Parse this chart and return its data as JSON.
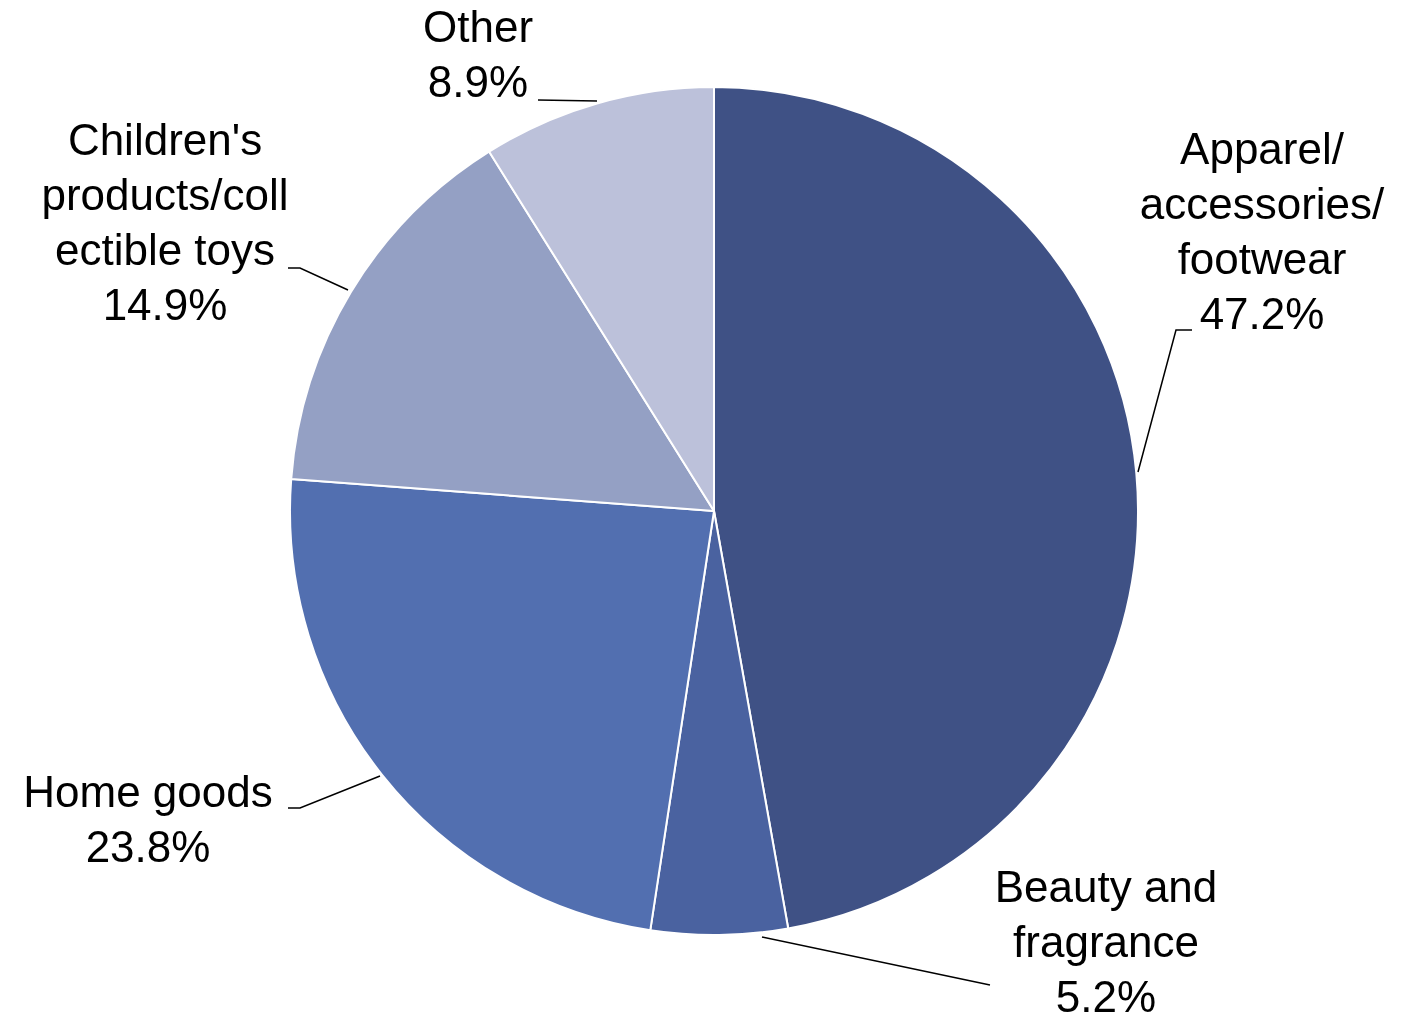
{
  "chart_data": {
    "type": "pie",
    "categories": [
      "Apparel/\naccessories/\nfootwear",
      "Beauty and\nfragrance",
      "Home goods",
      "Children's\nproducts/coll\nectible toys",
      "Other"
    ],
    "values": [
      47.2,
      5.2,
      23.8,
      14.9,
      8.9
    ],
    "colors": [
      "#3f5185",
      "#4a62a0",
      "#526fb0",
      "#94a0c4",
      "#bcc1da"
    ],
    "value_labels": [
      "47.2%",
      "5.2%",
      "23.8%",
      "14.9%",
      "8.9%"
    ],
    "legend": false
  }
}
